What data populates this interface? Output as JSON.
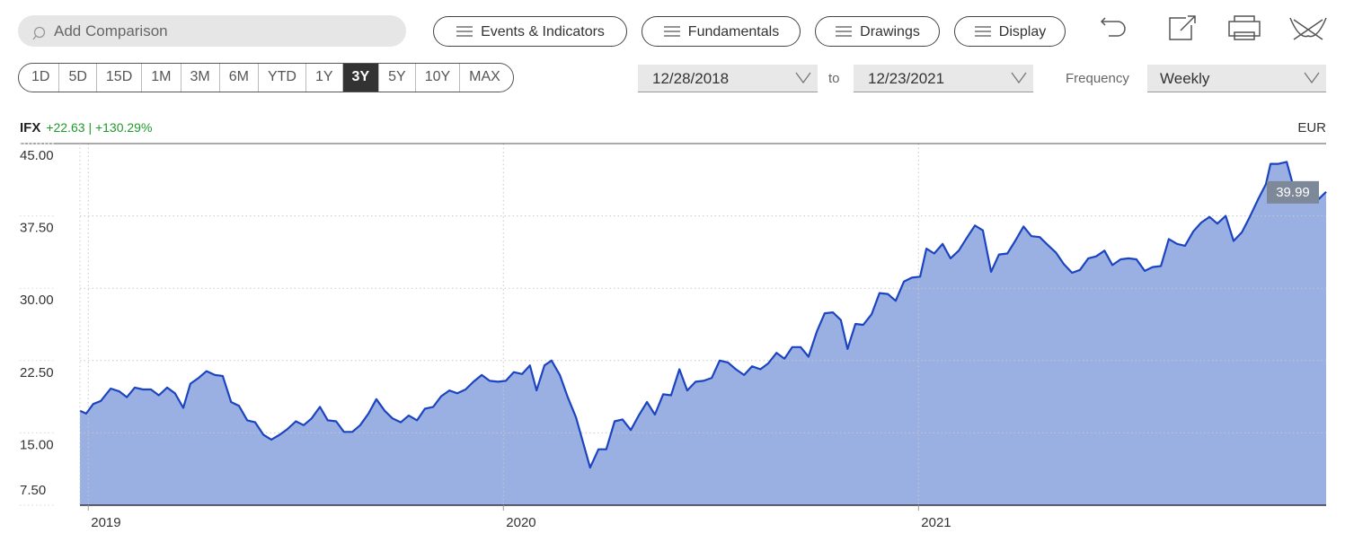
{
  "toolbar": {
    "search_placeholder": "Add Comparison",
    "buttons": [
      "Events & Indicators",
      "Fundamentals",
      "Drawings",
      "Display"
    ],
    "ranges": [
      {
        "label": "1D"
      },
      {
        "label": "5D"
      },
      {
        "label": "15D"
      },
      {
        "label": "1M"
      },
      {
        "label": "3M"
      },
      {
        "label": "6M"
      },
      {
        "label": "YTD"
      },
      {
        "label": "1Y"
      },
      {
        "label": "3Y",
        "active": true
      },
      {
        "label": "5Y"
      },
      {
        "label": "10Y"
      },
      {
        "label": "MAX"
      }
    ],
    "date_range": {
      "start": "12/28/2018",
      "separator": "to",
      "end": "12/23/2021"
    },
    "frequency": {
      "label": "Frequency",
      "value": "Weekly"
    }
  },
  "chart_data": {
    "type": "area",
    "ticker": "IFX",
    "change": "+22.63 | +130.29%",
    "currency": "EUR",
    "xlim": [
      2018.98,
      2021.982
    ],
    "xticks": [
      2019,
      2020,
      2021
    ],
    "ylim": [
      7.5,
      45
    ],
    "yticks": [
      {
        "value": 45,
        "label": "45.00"
      },
      {
        "value": 37.5,
        "label": "37.50"
      },
      {
        "value": 30,
        "label": "30.00"
      },
      {
        "value": 22.5,
        "label": "22.50"
      },
      {
        "value": 15,
        "label": "15.00"
      },
      {
        "value": 7.5,
        "label": "7.50"
      }
    ],
    "grid": true,
    "series": [
      {
        "name": "IFX",
        "color": "#1c44c0",
        "fill": "#9aafe2",
        "x": [
          2018.98,
          2018.995,
          2019.012,
          2019.03,
          2019.054,
          2019.075,
          2019.093,
          2019.112,
          2019.132,
          2019.151,
          2019.17,
          2019.19,
          2019.209,
          2019.229,
          2019.246,
          2019.266,
          2019.285,
          2019.305,
          2019.324,
          2019.344,
          2019.363,
          2019.383,
          2019.402,
          2019.422,
          2019.441,
          2019.461,
          2019.48,
          2019.5,
          2019.519,
          2019.538,
          2019.558,
          2019.577,
          2019.597,
          2019.616,
          2019.636,
          2019.655,
          2019.675,
          2019.694,
          2019.714,
          2019.733,
          2019.753,
          2019.772,
          2019.792,
          2019.811,
          2019.831,
          2019.85,
          2019.87,
          2019.889,
          2019.909,
          2019.928,
          2019.948,
          2019.967,
          2019.987,
          2020.006,
          2020.025,
          2020.045,
          2020.064,
          2020.08,
          2020.099,
          2020.116,
          2020.136,
          2020.155,
          2020.175,
          2020.194,
          2020.209,
          2020.229,
          2020.248,
          2020.268,
          2020.287,
          2020.307,
          2020.326,
          2020.346,
          2020.365,
          2020.385,
          2020.404,
          2020.424,
          2020.443,
          2020.463,
          2020.482,
          2020.502,
          2020.521,
          2020.541,
          2020.56,
          2020.58,
          2020.599,
          2020.619,
          2020.638,
          2020.658,
          2020.677,
          2020.696,
          2020.716,
          2020.735,
          2020.755,
          2020.774,
          2020.794,
          2020.813,
          2020.829,
          2020.848,
          2020.867,
          2020.887,
          2020.906,
          2020.926,
          2020.945,
          2020.965,
          2020.984,
          2021.004,
          2021.019,
          2021.038,
          2021.058,
          2021.077,
          2021.097,
          2021.116,
          2021.136,
          2021.155,
          2021.175,
          2021.194,
          2021.214,
          2021.233,
          2021.253,
          2021.272,
          2021.292,
          2021.311,
          2021.331,
          2021.35,
          2021.37,
          2021.389,
          2021.409,
          2021.428,
          2021.448,
          2021.467,
          2021.487,
          2021.506,
          2021.525,
          2021.545,
          2021.564,
          2021.584,
          2021.603,
          2021.623,
          2021.642,
          2021.662,
          2021.681,
          2021.701,
          2021.72,
          2021.74,
          2021.759,
          2021.779,
          2021.798,
          2021.818,
          2021.837,
          2021.848,
          2021.867,
          2021.887,
          2021.906,
          2021.926,
          2021.945,
          2021.963,
          2021.982
        ],
        "values": [
          17.3,
          17.0,
          18.0,
          18.3,
          19.6,
          19.3,
          18.7,
          19.7,
          19.5,
          19.5,
          18.9,
          19.7,
          19.1,
          17.6,
          20.1,
          20.7,
          21.4,
          21.0,
          20.9,
          18.2,
          17.8,
          16.3,
          16.1,
          14.8,
          14.3,
          14.8,
          15.4,
          16.2,
          15.8,
          16.5,
          17.7,
          16.3,
          16.2,
          15.1,
          15.1,
          15.8,
          17.0,
          18.5,
          17.3,
          16.5,
          16.1,
          16.8,
          16.3,
          17.5,
          17.7,
          18.8,
          19.4,
          19.1,
          19.5,
          20.3,
          21.0,
          20.4,
          20.3,
          20.4,
          21.3,
          21.1,
          22.0,
          19.4,
          22.0,
          22.5,
          21.0,
          18.7,
          16.6,
          13.7,
          11.4,
          13.3,
          13.3,
          16.2,
          16.4,
          15.3,
          16.8,
          18.2,
          16.9,
          19.0,
          18.9,
          21.6,
          19.4,
          20.3,
          20.4,
          20.7,
          22.5,
          22.3,
          21.6,
          21.0,
          21.9,
          21.6,
          22.2,
          23.3,
          22.7,
          23.9,
          23.9,
          22.9,
          25.5,
          27.4,
          27.5,
          26.7,
          23.7,
          26.3,
          26.2,
          27.3,
          29.5,
          29.4,
          28.7,
          30.7,
          31.1,
          31.2,
          34.1,
          33.6,
          34.6,
          33.1,
          33.9,
          35.2,
          36.5,
          36.0,
          31.7,
          33.5,
          33.6,
          34.9,
          36.4,
          35.4,
          35.3,
          34.5,
          33.7,
          32.5,
          31.6,
          31.9,
          33.1,
          33.3,
          33.9,
          32.4,
          33.0,
          33.1,
          33.0,
          31.8,
          32.2,
          32.3,
          35.1,
          34.6,
          34.4,
          35.9,
          36.8,
          37.4,
          36.7,
          37.5,
          34.9,
          35.8,
          37.4,
          39.2,
          40.8,
          42.9,
          42.9,
          43.1,
          40.1,
          40.0,
          40.0,
          39.2,
          39.99
        ]
      }
    ]
  }
}
